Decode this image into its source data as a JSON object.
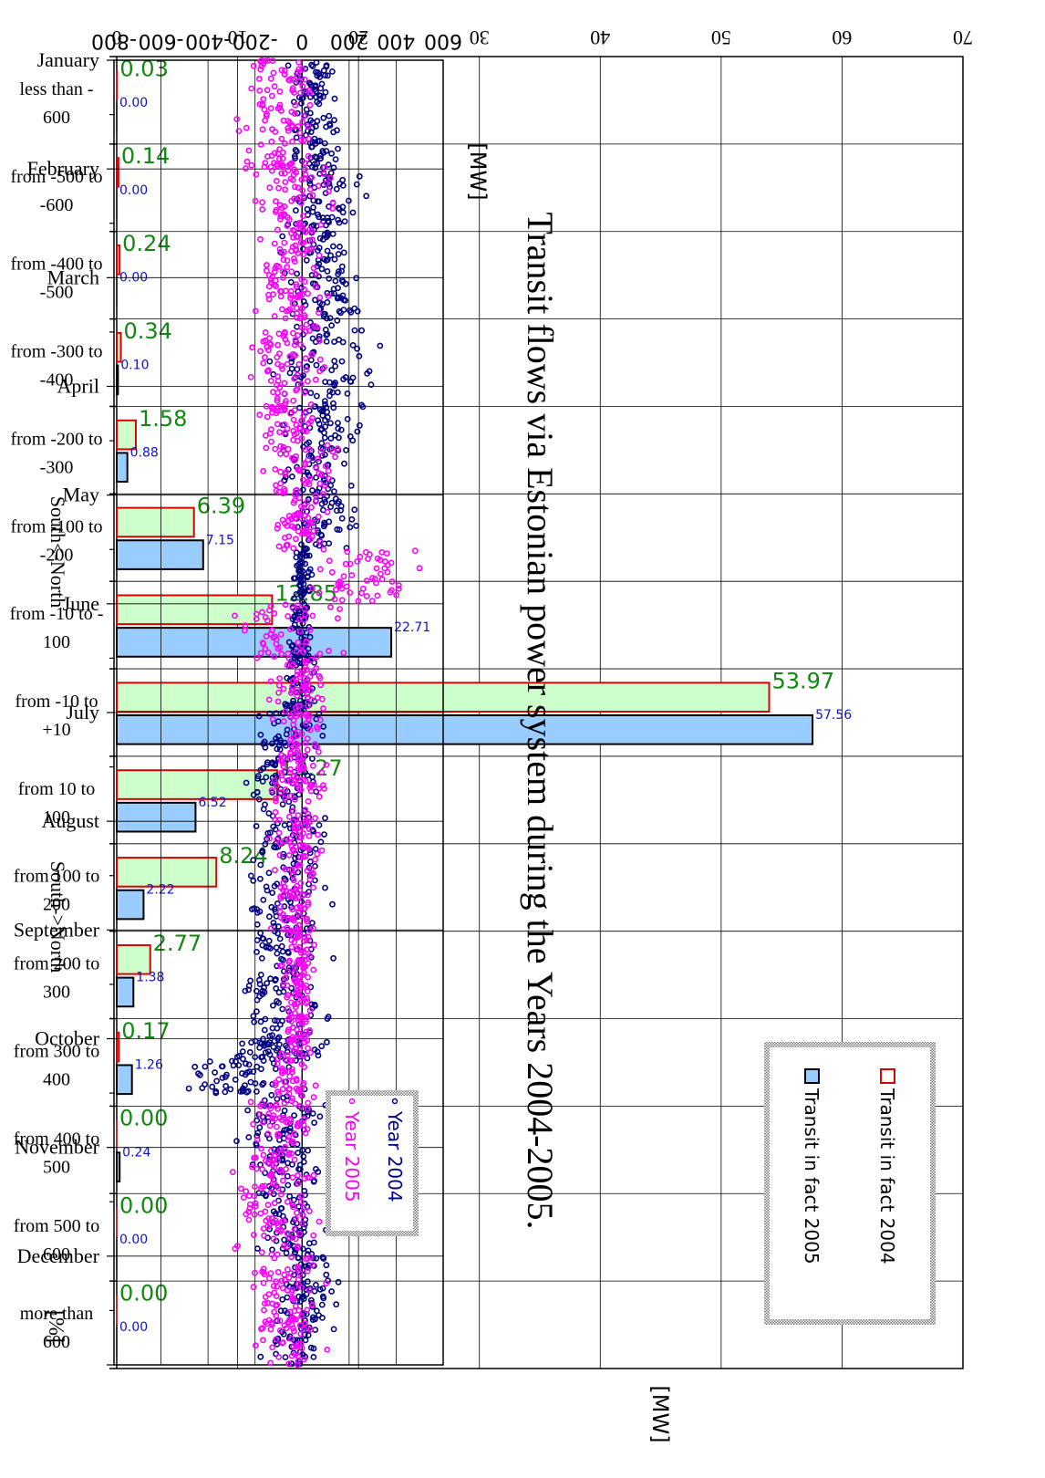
{
  "title": "Transit flows via Estonian power system during the Years 2004-2005.",
  "chart_data": [
    {
      "type": "bar",
      "orientation": "horizontal",
      "categories": [
        "less than -600",
        "from -500 to -600",
        "from -400 to -500",
        "from -300 to -400",
        "from -200 to -300",
        "from -100 to -200",
        "from -10 to -100",
        "from -10 to +10",
        "from 10 to 100",
        "from 100 to 200",
        "from 200 to 300",
        "from 300 to 400",
        "from 400 to 500",
        "from 500 to 600",
        "more than 600"
      ],
      "category_lines": [
        [
          "less than -",
          "600"
        ],
        [
          "from -500 to",
          "-600"
        ],
        [
          "from -400 to",
          "-500"
        ],
        [
          "from -300 to",
          "-400"
        ],
        [
          "from -200 to",
          "-300"
        ],
        [
          "from -100 to",
          "-200"
        ],
        [
          "from -10 to -",
          "100"
        ],
        [
          "from -10 to",
          "+10"
        ],
        [
          "from 10 to",
          "100"
        ],
        [
          "from 100 to",
          "200"
        ],
        [
          "from 200 to",
          "300"
        ],
        [
          "from 300 to",
          "400"
        ],
        [
          "from 400 to",
          "500"
        ],
        [
          "from 500 to",
          "600"
        ],
        [
          "more than",
          "600"
        ]
      ],
      "series": [
        {
          "name": "Transit in fact 2004",
          "values": [
            0.03,
            0.14,
            0.24,
            0.34,
            1.58,
            6.39,
            12.85,
            53.97,
            13.27,
            8.24,
            2.77,
            0.17,
            0.0,
            0.0,
            0.0
          ],
          "labels": [
            "0.03",
            "0.14",
            "0.24",
            "0.34",
            "1.58",
            "6.39",
            "12.85",
            "53.97",
            "13.27",
            "8.24",
            "2.77",
            "0.17",
            "0.00",
            "0.00",
            "0.00"
          ],
          "fill": "#ccffcc",
          "stroke": "#dd0000",
          "label_color": "#118811"
        },
        {
          "name": "Transit in fact 2005",
          "values": [
            0.0,
            0.0,
            0.0,
            0.1,
            0.88,
            7.15,
            22.71,
            57.56,
            6.52,
            2.22,
            1.38,
            1.26,
            0.24,
            0.0,
            0.0
          ],
          "labels": [
            "0.00",
            "0.00",
            "0.00",
            "0.10",
            "0.88",
            "7.15",
            "22.71",
            "57.56",
            "6.52",
            "2.22",
            "1.38",
            "1.26",
            "0.24",
            "0.00",
            "0.00"
          ],
          "fill": "#99ccff",
          "stroke": "#000000",
          "label_color": "#1111cc"
        }
      ],
      "value_axis": {
        "unit": "[%]",
        "ticks": [
          "0",
          "10",
          "20",
          "30",
          "40",
          "50",
          "60",
          "70"
        ],
        "range": [
          0,
          70
        ]
      },
      "category_axis_unit": "[MW]",
      "side_labels": [
        "South<-North",
        "South->North"
      ],
      "grid": true,
      "legend": "bottom-right"
    },
    {
      "type": "scatter",
      "x_ticks": [
        "January",
        "February",
        "March",
        "April",
        "May",
        "June",
        "July",
        "August",
        "September",
        "October",
        "November",
        "December"
      ],
      "y_ticks": [
        "-800",
        "-600",
        "-400",
        "-200",
        "0",
        "200",
        "400",
        "600"
      ],
      "y_range": [
        -800,
        600
      ],
      "y_unit": "[MW]",
      "grid": true,
      "legend": "bottom-right",
      "series": [
        {
          "name": "Year 2004",
          "color": "#000080",
          "segments": [
            {
              "months": [
                0,
                0.5
              ],
              "mid": 40,
              "spread": 110
            },
            {
              "months": [
                0.5,
                1
              ],
              "mid": 60,
              "spread": 110
            },
            {
              "months": [
                1,
                1.5
              ],
              "mid": 100,
              "spread": 180
            },
            {
              "months": [
                1.5,
                2
              ],
              "mid": 80,
              "spread": 170
            },
            {
              "months": [
                2,
                2.5
              ],
              "mid": 100,
              "spread": 200
            },
            {
              "months": [
                2.5,
                3
              ],
              "mid": 110,
              "spread": 240
            },
            {
              "months": [
                3,
                3.5
              ],
              "mid": 100,
              "spread": 200
            },
            {
              "months": [
                3.5,
                4
              ],
              "mid": 60,
              "spread": 160
            },
            {
              "months": [
                4,
                4.5
              ],
              "mid": 80,
              "spread": 160
            },
            {
              "months": [
                4.5,
                5
              ],
              "mid": 0,
              "spread": 40
            },
            {
              "months": [
                5,
                5.5
              ],
              "mid": -10,
              "spread": 60
            },
            {
              "months": [
                5.5,
                6
              ],
              "mid": -20,
              "spread": 80
            },
            {
              "months": [
                6,
                6.5
              ],
              "mid": -70,
              "spread": 200
            },
            {
              "months": [
                6.5,
                7
              ],
              "mid": -80,
              "spread": 220
            },
            {
              "months": [
                7,
                7.5
              ],
              "mid": -60,
              "spread": 180
            },
            {
              "months": [
                7.5,
                8
              ],
              "mid": -80,
              "spread": 200
            },
            {
              "months": [
                8,
                8.5
              ],
              "mid": -90,
              "spread": 220
            },
            {
              "months": [
                8.5,
                9
              ],
              "mid": -70,
              "spread": 200
            },
            {
              "months": [
                9,
                9.2
              ],
              "mid": -100,
              "spread": 240
            },
            {
              "months": [
                9.2,
                9.5
              ],
              "mid": -230,
              "spread": 330
            },
            {
              "months": [
                9.5,
                10
              ],
              "mid": -90,
              "spread": 220
            },
            {
              "months": [
                10,
                10.5
              ],
              "mid": -70,
              "spread": 180
            },
            {
              "months": [
                10.5,
                11
              ],
              "mid": -40,
              "spread": 160
            },
            {
              "months": [
                11,
                11.5
              ],
              "mid": 20,
              "spread": 140
            },
            {
              "months": [
                11.5,
                12
              ],
              "mid": -10,
              "spread": 160
            }
          ]
        },
        {
          "name": "Year 2005",
          "color": "#ff00ff",
          "segments": [
            {
              "months": [
                0,
                0.5
              ],
              "mid": -80,
              "spread": 180
            },
            {
              "months": [
                0.5,
                1
              ],
              "mid": -100,
              "spread": 200
            },
            {
              "months": [
                1,
                1.5
              ],
              "mid": -40,
              "spread": 180
            },
            {
              "months": [
                1.5,
                2
              ],
              "mid": -40,
              "spread": 160
            },
            {
              "months": [
                2,
                2.5
              ],
              "mid": -30,
              "spread": 160
            },
            {
              "months": [
                2.5,
                3
              ],
              "mid": -60,
              "spread": 180
            },
            {
              "months": [
                3,
                3.5
              ],
              "mid": -50,
              "spread": 160
            },
            {
              "months": [
                3.5,
                4
              ],
              "mid": 0,
              "spread": 180
            },
            {
              "months": [
                4,
                4.5
              ],
              "mid": -20,
              "spread": 150
            },
            {
              "months": [
                4.5,
                5
              ],
              "mid": 250,
              "spread": 240
            },
            {
              "months": [
                5,
                5.5
              ],
              "mid": -60,
              "spread": 240
            },
            {
              "months": [
                5.5,
                6
              ],
              "mid": -20,
              "spread": 160
            },
            {
              "months": [
                6,
                6.5
              ],
              "mid": -10,
              "spread": 120
            },
            {
              "months": [
                6.5,
                7
              ],
              "mid": -20,
              "spread": 130
            },
            {
              "months": [
                7,
                7.5
              ],
              "mid": -20,
              "spread": 140
            },
            {
              "months": [
                7.5,
                8
              ],
              "mid": -30,
              "spread": 120
            },
            {
              "months": [
                8,
                8.5
              ],
              "mid": -10,
              "spread": 80
            },
            {
              "months": [
                8.5,
                9
              ],
              "mid": -20,
              "spread": 80
            },
            {
              "months": [
                9,
                9.5
              ],
              "mid": -40,
              "spread": 100
            },
            {
              "months": [
                9.5,
                10
              ],
              "mid": -90,
              "spread": 180
            },
            {
              "months": [
                10,
                10.5
              ],
              "mid": -100,
              "spread": 200
            },
            {
              "months": [
                10.5,
                11
              ],
              "mid": -120,
              "spread": 200
            },
            {
              "months": [
                11,
                11.5
              ],
              "mid": -80,
              "spread": 180
            },
            {
              "months": [
                11.5,
                12
              ],
              "mid": -60,
              "spread": 160
            }
          ]
        }
      ]
    }
  ]
}
